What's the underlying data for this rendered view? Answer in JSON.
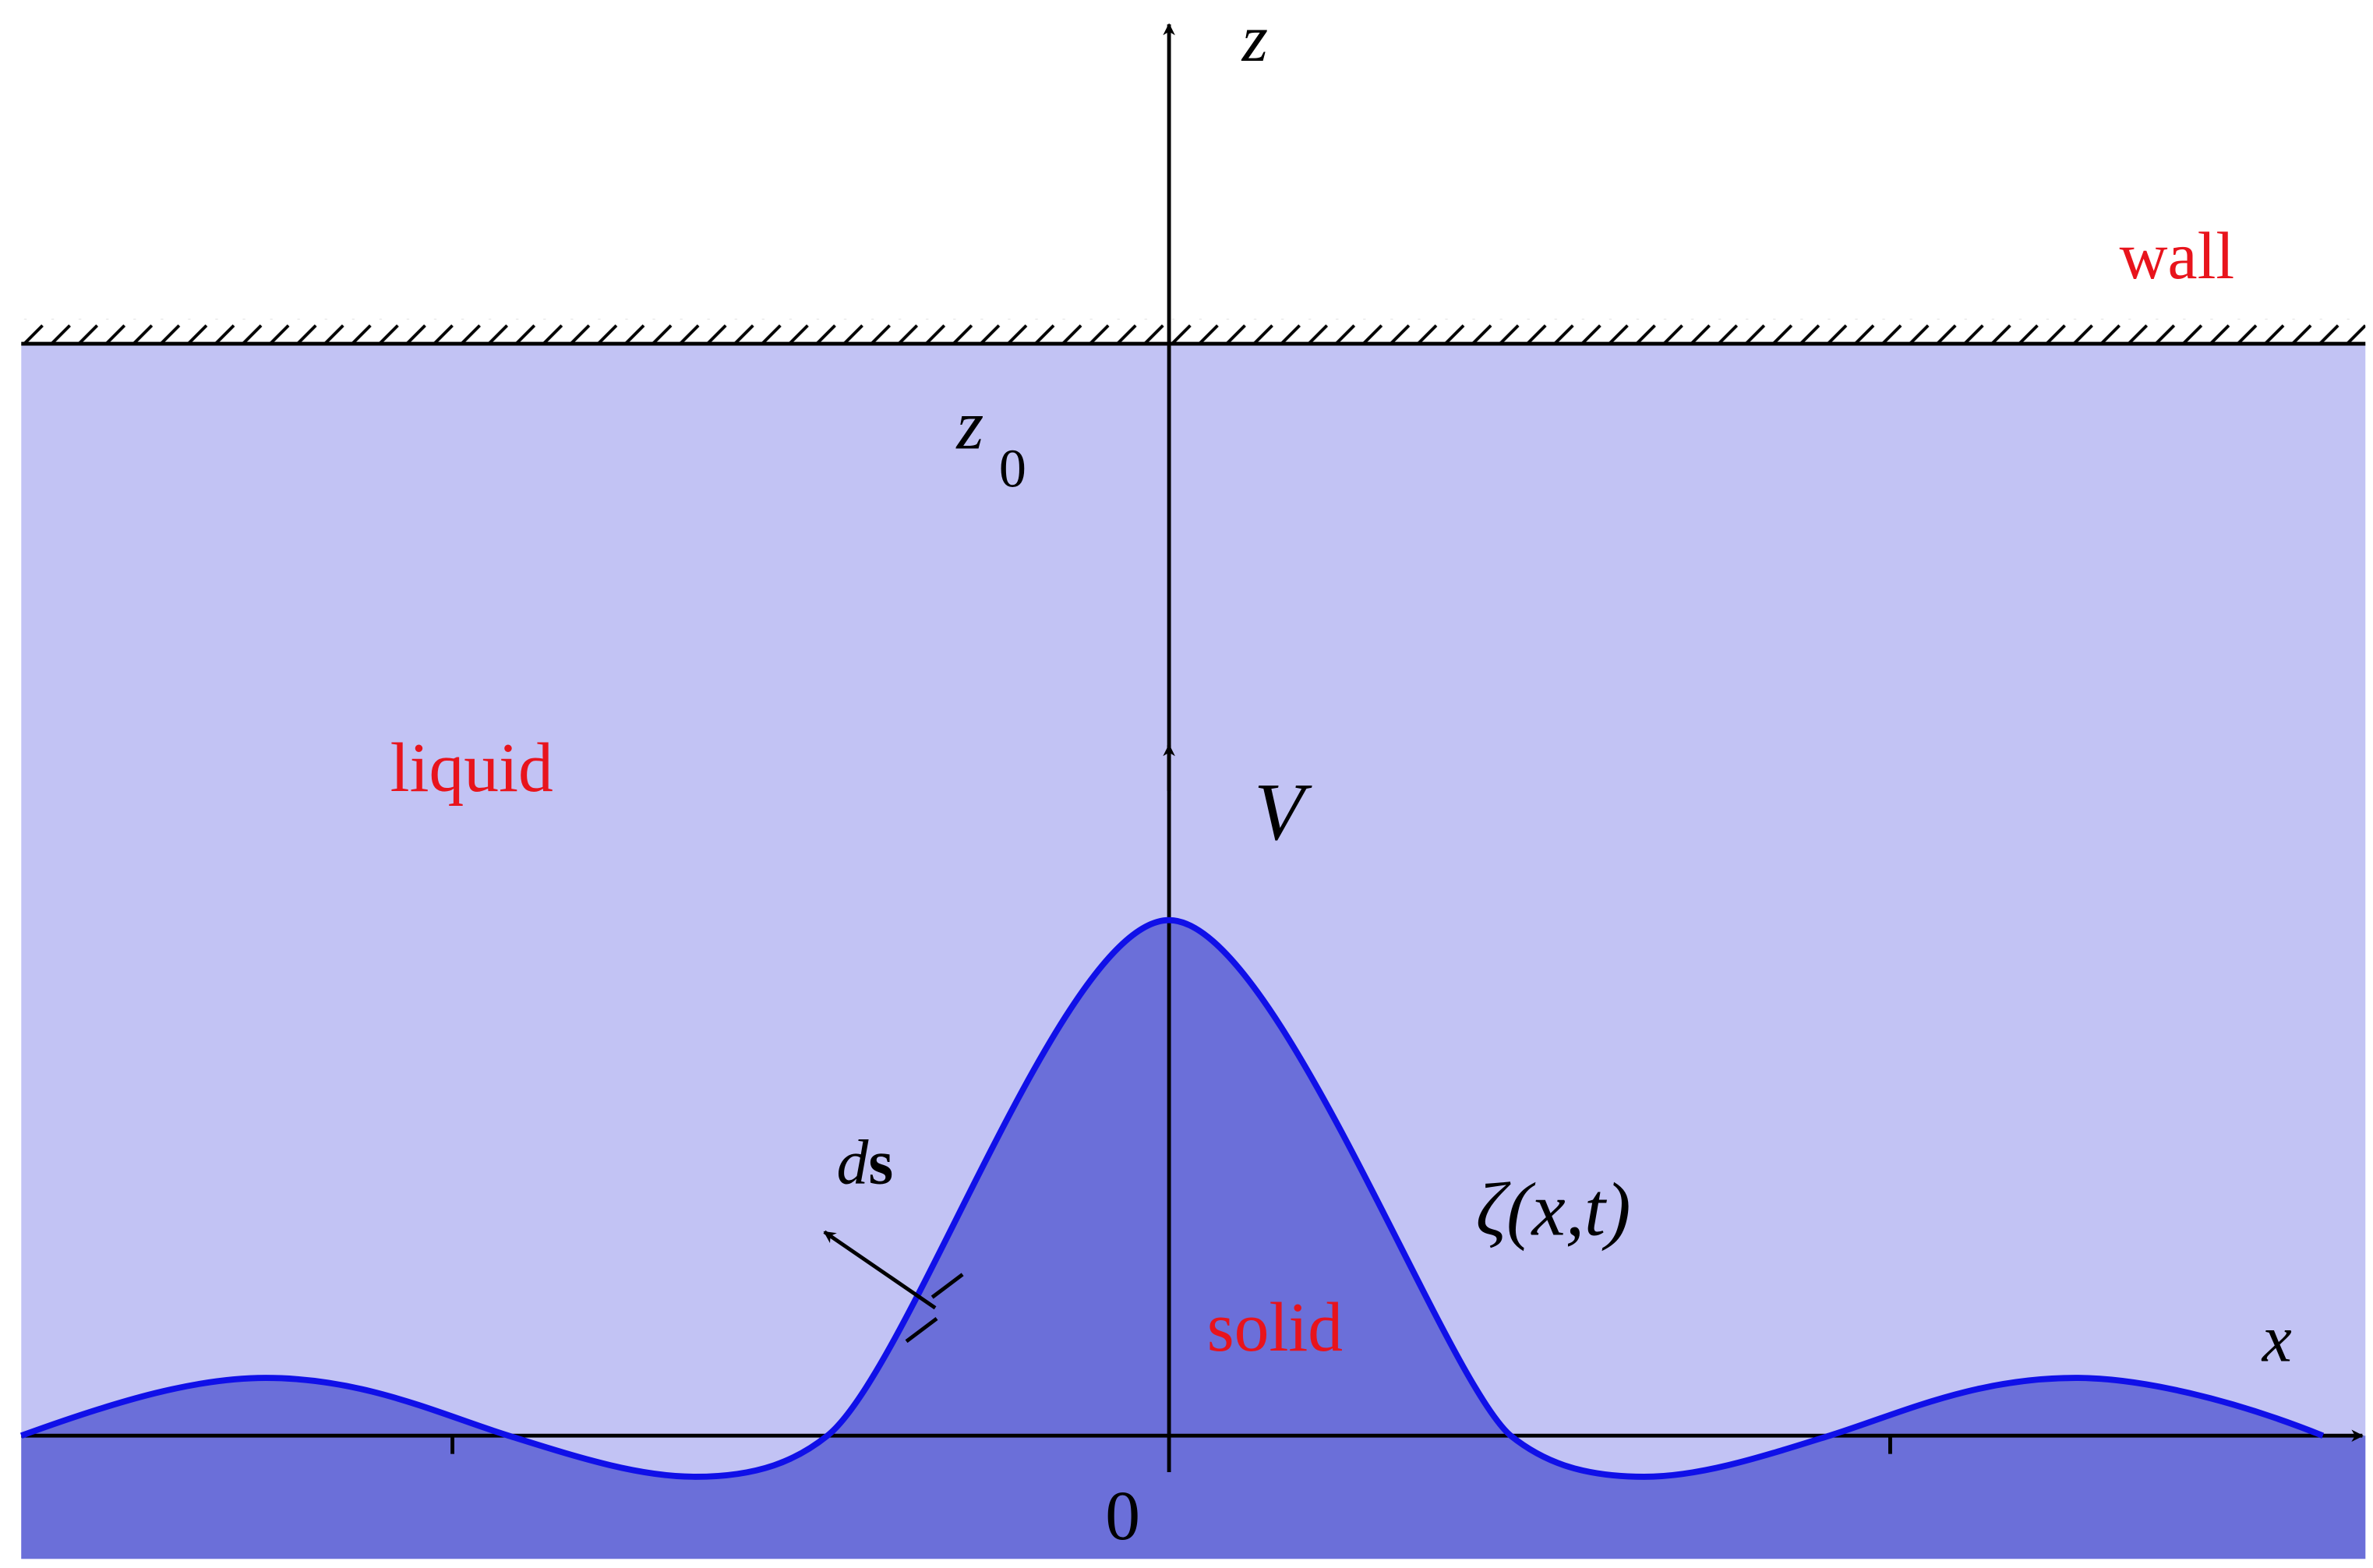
{
  "labels": {
    "z_axis": "z",
    "x_axis": "x",
    "wall": "wall",
    "z0": {
      "base": "z",
      "sub": "0"
    },
    "liquid": "liquid",
    "velocity": "V",
    "ds": {
      "d": "d",
      "s": "s"
    },
    "surface": "ζ(x,t)",
    "solid": "solid",
    "origin": "0"
  }
}
